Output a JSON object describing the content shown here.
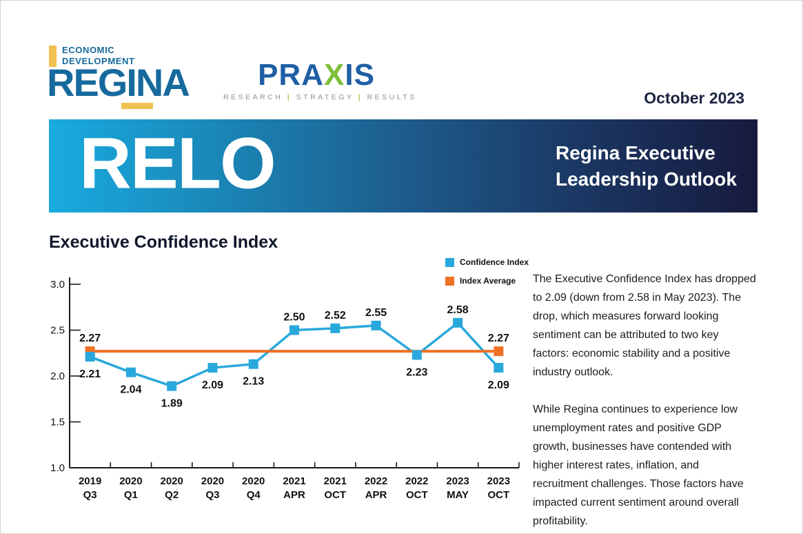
{
  "header": {
    "edr_logo": {
      "line1": "ECONOMIC",
      "line2": "DEVELOPMENT",
      "name": "REGINA",
      "brand_blue": "#16699d",
      "brand_yellow": "#f0c14e"
    },
    "praxis_logo": {
      "part1": "PRA",
      "part2": "X",
      "part3": "IS",
      "tagline1": "RESEARCH",
      "tagline2": "STRATEGY",
      "tagline3": "RESULTS",
      "separator": "|",
      "brand_blue": "#1e5fa5",
      "brand_green": "#7dbf3a"
    },
    "date": "October 2023"
  },
  "banner": {
    "acronym": "RELO",
    "title_line1": "Regina Executive",
    "title_line2": "Leadership Outlook",
    "gradient_start": "#19abe0",
    "gradient_end": "#171a3d"
  },
  "section": {
    "title": "Executive Confidence Index"
  },
  "legend": {
    "items": [
      {
        "label": "Confidence Index",
        "color": "#29a8dc"
      },
      {
        "label": "Index Average",
        "color": "#ee7125"
      }
    ]
  },
  "chart_data": {
    "type": "line",
    "title": "Executive Confidence Index",
    "categories": [
      [
        "2019",
        "Q3"
      ],
      [
        "2020",
        "Q1"
      ],
      [
        "2020",
        "Q2"
      ],
      [
        "2020",
        "Q3"
      ],
      [
        "2020",
        "Q4"
      ],
      [
        "2021",
        "APR"
      ],
      [
        "2021",
        "OCT"
      ],
      [
        "2022",
        "APR"
      ],
      [
        "2022",
        "OCT"
      ],
      [
        "2023",
        "MAY"
      ],
      [
        "2023",
        "OCT"
      ]
    ],
    "series": [
      {
        "name": "Confidence Index",
        "color": "#29a8dc",
        "values": [
          2.21,
          2.04,
          1.89,
          2.09,
          2.13,
          2.5,
          2.52,
          2.55,
          2.23,
          2.58,
          2.09
        ],
        "label_side": [
          "below",
          "below",
          "below",
          "below",
          "below",
          "above",
          "above",
          "above",
          "below",
          "above",
          "below"
        ]
      },
      {
        "name": "Index Average",
        "color": "#ee7125",
        "style": "horizontal-reference-line",
        "value": 2.27
      }
    ],
    "ylim": [
      1.0,
      3.0
    ],
    "yticks": [
      1.0,
      1.5,
      2.0,
      2.5,
      3.0
    ],
    "grid": false,
    "legend_position": "top-right"
  },
  "paragraphs": [
    "The Executive Confidence Index has dropped to 2.09 (down from 2.58 in May 2023). The drop, which measures forward looking sentiment can be attributed to two key factors: economic stability and a positive industry outlook.",
    "While Regina continues to experience low unemployment rates and positive GDP growth, businesses have contended with higher interest rates, inflation, and recruitment challenges. Those factors have impacted current sentiment around overall profitability."
  ]
}
